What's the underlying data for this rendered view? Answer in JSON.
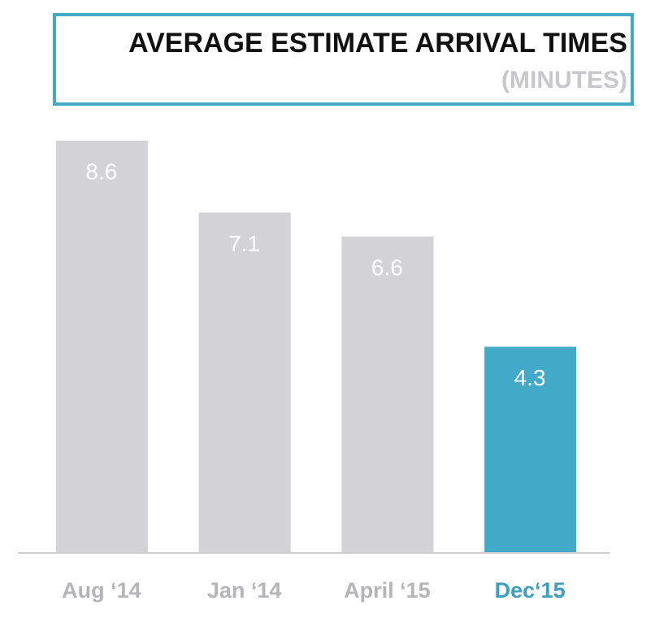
{
  "chart_data": {
    "type": "bar",
    "title": "AVERAGE ESTIMATE ARRIVAL TIMES",
    "subtitle": "(MINUTES)",
    "categories": [
      "Aug ‘14",
      "Jan ‘14",
      "April ‘15",
      "Dec‘15"
    ],
    "values": [
      8.6,
      7.1,
      6.6,
      4.3
    ],
    "colors": [
      "#d3d2d7",
      "#d3d2d7",
      "#d3d2d7",
      "#42a9c9"
    ],
    "label_colors": [
      "#b5b5b8",
      "#b5b5b8",
      "#b5b5b8",
      "#3a9fc0"
    ],
    "value_label_color": "#ffffff",
    "frame_color": "#42a9c9"
  }
}
